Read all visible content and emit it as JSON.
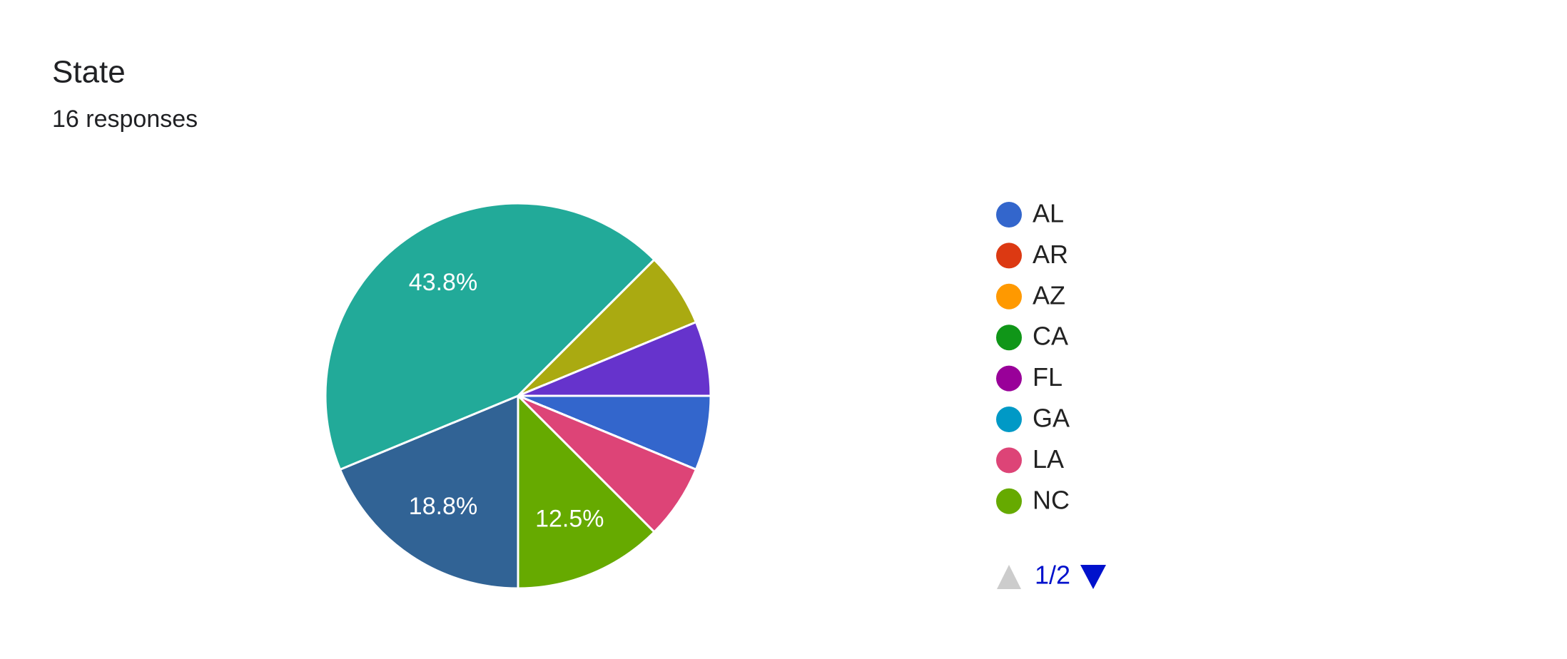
{
  "chart_data": {
    "type": "pie",
    "title": "State",
    "subtitle": "16 responses",
    "categories": [
      "AL",
      "AR",
      "AZ",
      "CA",
      "FL",
      "GA",
      "LA",
      "NC",
      null,
      null,
      null,
      null
    ],
    "values": [
      6.25,
      0,
      0,
      0,
      0,
      0,
      6.25,
      12.5,
      18.75,
      43.75,
      6.25,
      6.25
    ],
    "value_labels": [
      null,
      null,
      null,
      null,
      null,
      null,
      null,
      "12.5%",
      "18.8%",
      "43.8%",
      null,
      null
    ],
    "colors": [
      "#3366cc",
      "#dc3912",
      "#ff9900",
      "#109618",
      "#990099",
      "#0099c6",
      "#dd4477",
      "#66aa00",
      "#316395",
      "#22aa99",
      "#aaaa11",
      "#6633cc"
    ],
    "legend_page": "1/2"
  }
}
